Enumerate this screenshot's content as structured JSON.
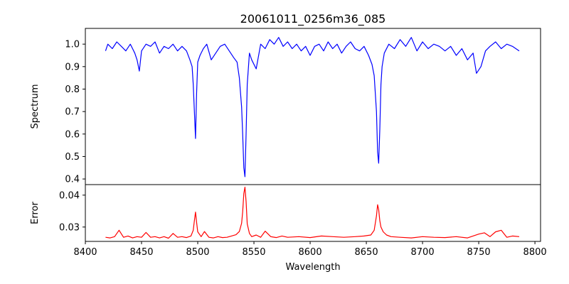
{
  "chart_data": {
    "type": "line",
    "title": "20061011_0256m36_085",
    "xlabel": "Wavelength",
    "xlim": [
      8400,
      8805
    ],
    "xticks": [
      8400,
      8450,
      8500,
      8550,
      8600,
      8650,
      8700,
      8750,
      8800
    ],
    "grid": false,
    "panels": [
      {
        "name": "spectrum",
        "ylabel": "Spectrum",
        "ylim": [
          0.375,
          1.07
        ],
        "yticks": [
          0.4,
          0.5,
          0.6,
          0.7,
          0.8,
          0.9,
          1.0
        ],
        "ytick_labels": [
          "0.4",
          "0.5",
          "0.6",
          "0.7",
          "0.8",
          "0.9",
          "1.0"
        ],
        "series": [
          {
            "color": "#0000ff",
            "x": [
              8418,
              8420,
              8424,
              8428,
              8432,
              8436,
              8440,
              8442,
              8444,
              8446,
              8448,
              8450,
              8454,
              8458,
              8462,
              8466,
              8470,
              8474,
              8478,
              8482,
              8486,
              8490,
              8493,
              8495,
              8496,
              8497,
              8498,
              8499,
              8500,
              8502,
              8505,
              8508,
              8512,
              8516,
              8520,
              8524,
              8528,
              8532,
              8535,
              8537,
              8539,
              8540,
              8541,
              8542,
              8543,
              8544,
              8546,
              8548,
              8552,
              8556,
              8560,
              8564,
              8568,
              8572,
              8576,
              8580,
              8584,
              8588,
              8592,
              8596,
              8600,
              8604,
              8608,
              8612,
              8616,
              8620,
              8624,
              8628,
              8632,
              8636,
              8640,
              8644,
              8648,
              8652,
              8655,
              8657,
              8659,
              8660,
              8661,
              8662,
              8663,
              8664,
              8666,
              8670,
              8675,
              8680,
              8685,
              8690,
              8695,
              8700,
              8705,
              8710,
              8715,
              8720,
              8725,
              8730,
              8735,
              8740,
              8745,
              8748,
              8752,
              8756,
              8760,
              8765,
              8770,
              8775,
              8780,
              8786
            ],
            "y": [
              0.97,
              1.0,
              0.98,
              1.01,
              0.99,
              0.97,
              1.0,
              0.98,
              0.96,
              0.93,
              0.88,
              0.97,
              1.0,
              0.99,
              1.01,
              0.96,
              0.99,
              0.98,
              1.0,
              0.97,
              0.99,
              0.97,
              0.93,
              0.9,
              0.82,
              0.7,
              0.58,
              0.78,
              0.92,
              0.95,
              0.98,
              1.0,
              0.93,
              0.96,
              0.99,
              1.0,
              0.97,
              0.94,
              0.92,
              0.85,
              0.72,
              0.6,
              0.45,
              0.41,
              0.6,
              0.82,
              0.96,
              0.93,
              0.89,
              1.0,
              0.98,
              1.02,
              1.0,
              1.03,
              0.99,
              1.01,
              0.98,
              1.0,
              0.97,
              0.99,
              0.95,
              0.99,
              1.0,
              0.97,
              1.01,
              0.98,
              1.0,
              0.96,
              0.99,
              1.01,
              0.98,
              0.97,
              0.99,
              0.95,
              0.91,
              0.86,
              0.7,
              0.52,
              0.47,
              0.62,
              0.82,
              0.9,
              0.96,
              1.0,
              0.98,
              1.02,
              0.99,
              1.03,
              0.97,
              1.01,
              0.98,
              1.0,
              0.99,
              0.97,
              0.99,
              0.95,
              0.98,
              0.93,
              0.96,
              0.87,
              0.9,
              0.97,
              0.99,
              1.01,
              0.98,
              1.0,
              0.99,
              0.97
            ]
          }
        ]
      },
      {
        "name": "error",
        "ylabel": "Error",
        "ylim": [
          0.0255,
          0.0433
        ],
        "yticks": [
          0.03,
          0.04
        ],
        "ytick_labels": [
          "0.03",
          "0.04"
        ],
        "series": [
          {
            "color": "#ff0000",
            "x": [
              8418,
              8422,
              8426,
              8430,
              8434,
              8438,
              8442,
              8446,
              8450,
              8454,
              8458,
              8462,
              8466,
              8470,
              8474,
              8478,
              8482,
              8486,
              8490,
              8494,
              8496,
              8497,
              8498,
              8499,
              8500,
              8503,
              8506,
              8510,
              8514,
              8518,
              8522,
              8526,
              8530,
              8534,
              8537,
              8539,
              8540,
              8541,
              8542,
              8543,
              8544,
              8546,
              8548,
              8552,
              8556,
              8560,
              8565,
              8570,
              8575,
              8580,
              8590,
              8600,
              8610,
              8620,
              8630,
              8640,
              8648,
              8654,
              8657,
              8659,
              8660,
              8661,
              8662,
              8663,
              8665,
              8668,
              8672,
              8680,
              8690,
              8700,
              8710,
              8720,
              8730,
              8740,
              8750,
              8755,
              8760,
              8765,
              8770,
              8775,
              8780,
              8786
            ],
            "y": [
              0.0268,
              0.0266,
              0.027,
              0.029,
              0.0268,
              0.0272,
              0.0266,
              0.027,
              0.0268,
              0.0283,
              0.0268,
              0.027,
              0.0266,
              0.027,
              0.0265,
              0.028,
              0.0268,
              0.027,
              0.0267,
              0.0272,
              0.029,
              0.032,
              0.0347,
              0.0315,
              0.0285,
              0.027,
              0.0286,
              0.0268,
              0.0266,
              0.027,
              0.0267,
              0.0268,
              0.0272,
              0.0276,
              0.0286,
              0.0312,
              0.0348,
              0.0405,
              0.0425,
              0.038,
              0.031,
              0.028,
              0.027,
              0.0275,
              0.0268,
              0.0287,
              0.027,
              0.0267,
              0.0272,
              0.0268,
              0.027,
              0.0267,
              0.0272,
              0.027,
              0.0268,
              0.027,
              0.0272,
              0.0275,
              0.029,
              0.0335,
              0.037,
              0.0355,
              0.032,
              0.03,
              0.0285,
              0.0275,
              0.027,
              0.0268,
              0.0266,
              0.027,
              0.0268,
              0.0267,
              0.027,
              0.0266,
              0.0278,
              0.0282,
              0.027,
              0.0285,
              0.029,
              0.0268,
              0.0272,
              0.027
            ]
          }
        ]
      }
    ]
  }
}
